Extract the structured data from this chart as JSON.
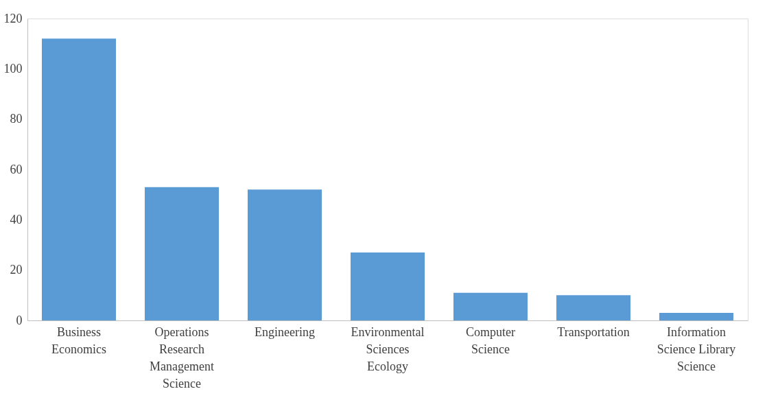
{
  "chart_data": {
    "type": "bar",
    "categories": [
      "Business Economics",
      "Operations Research Management Science",
      "Engineering",
      "Environmental Sciences Ecology",
      "Computer Science",
      "Transportation",
      "Information Science Library Science"
    ],
    "values": [
      112,
      53,
      52,
      27,
      11,
      10,
      3
    ],
    "color": "#5b9bd5",
    "ylim": [
      0,
      120
    ],
    "yticks": [
      0,
      20,
      40,
      60,
      80,
      100,
      120
    ],
    "grid": false
  }
}
